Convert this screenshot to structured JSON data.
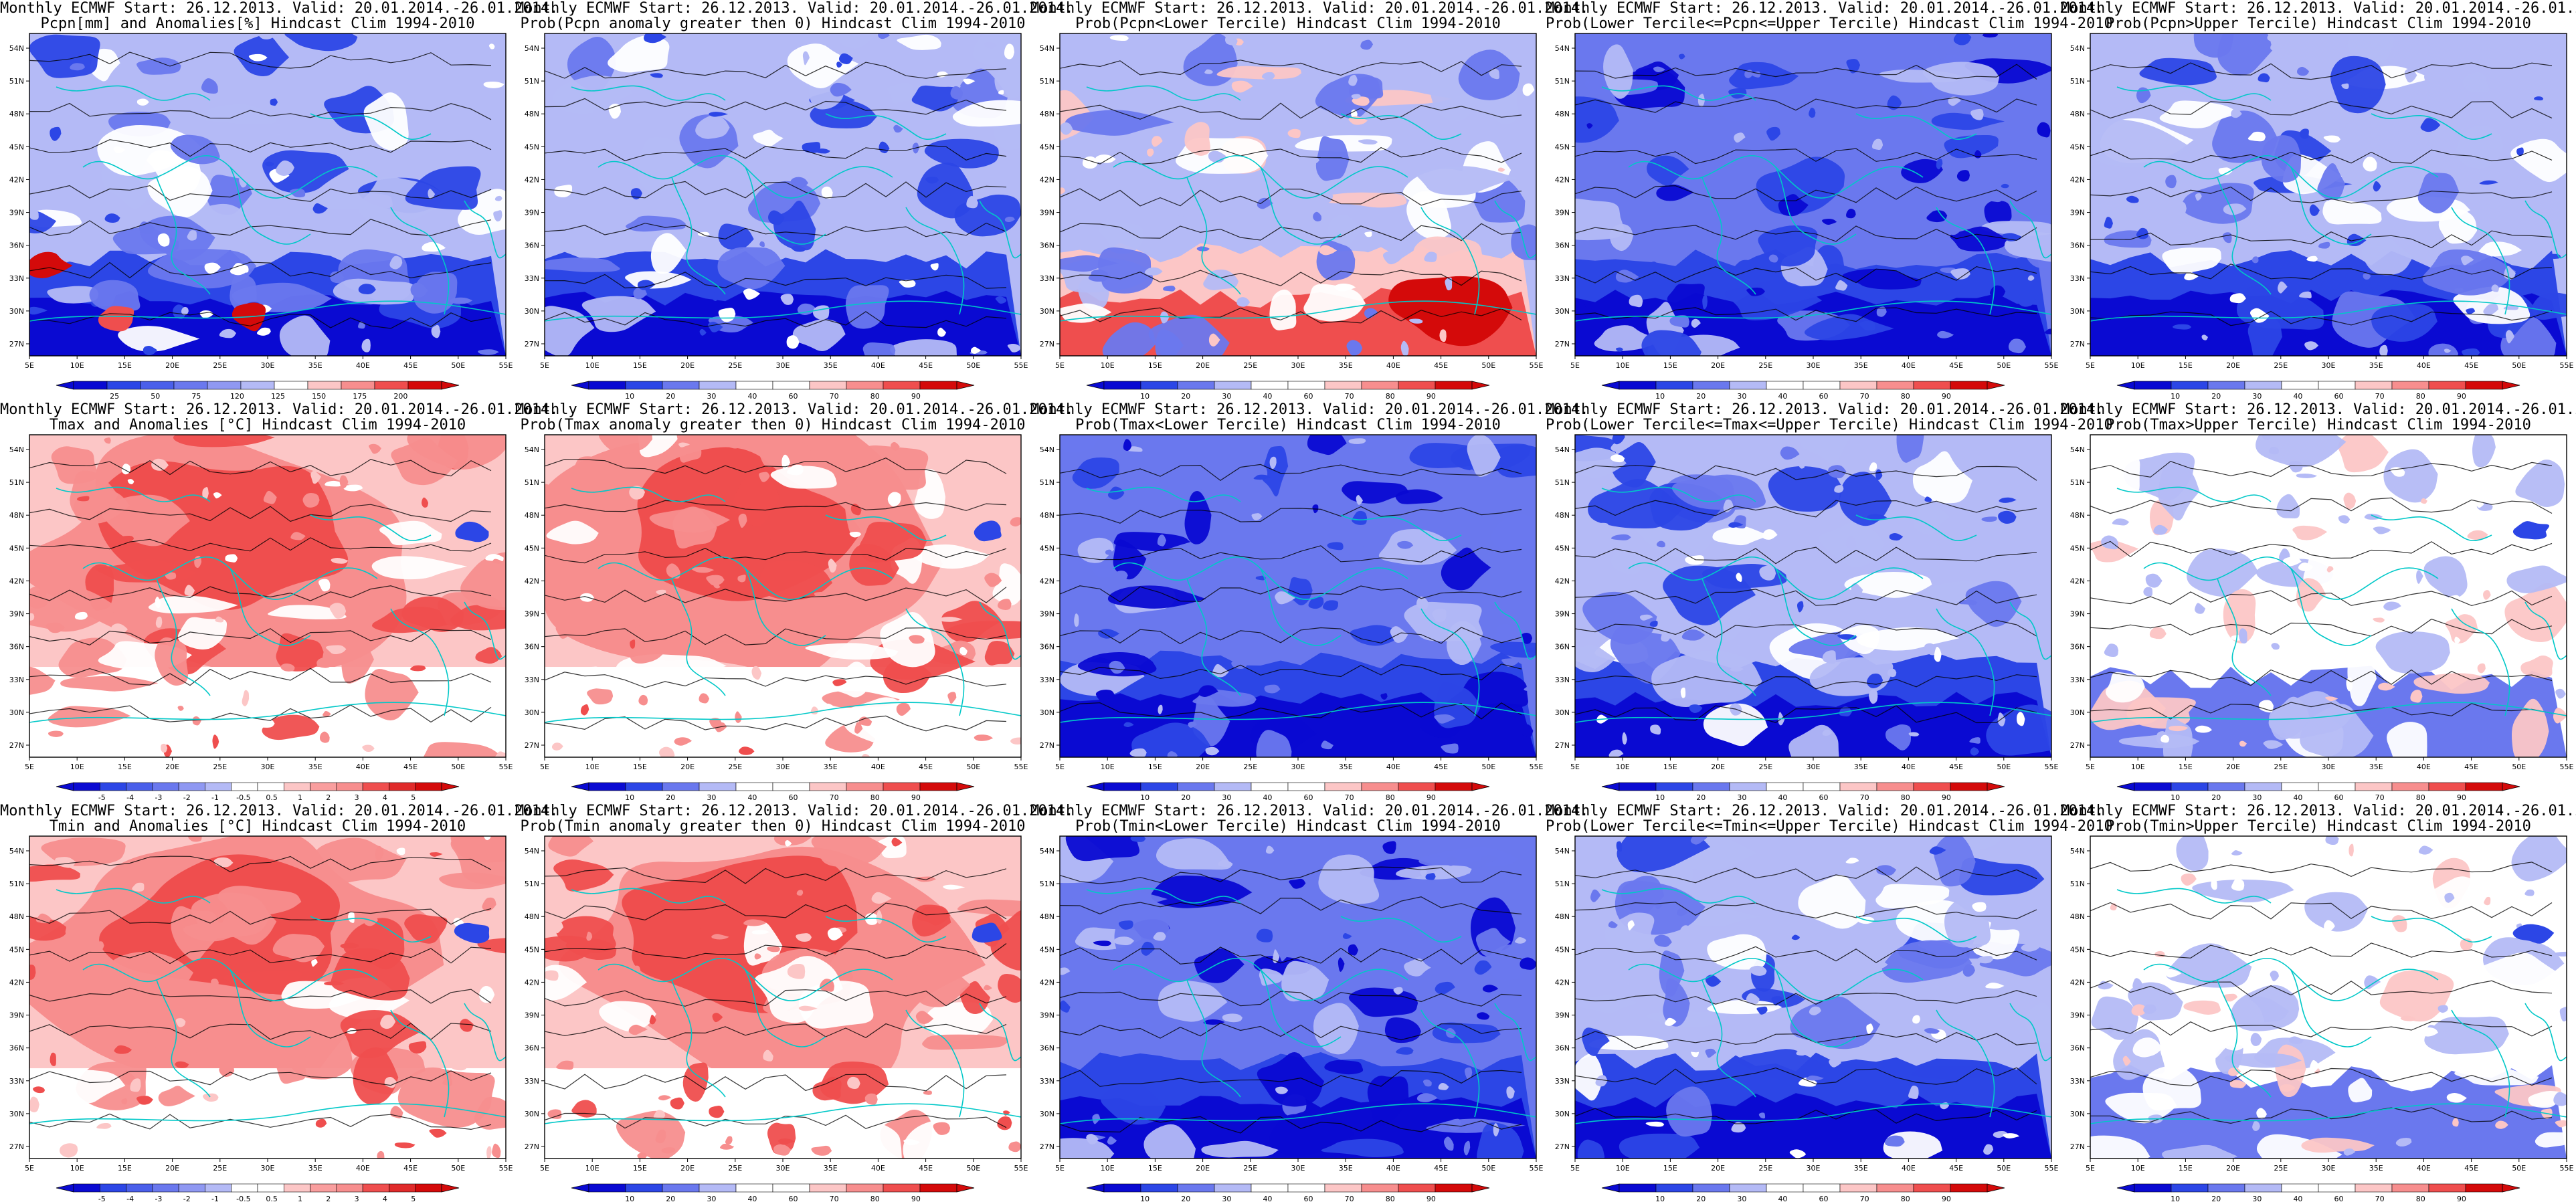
{
  "header": "Monthly ECMWF Start: 26.12.2013. Valid: 20.01.2014.-26.01.2014.",
  "map": {
    "lon_ticks": [
      "5E",
      "10E",
      "15E",
      "20E",
      "25E",
      "30E",
      "35E",
      "40E",
      "45E",
      "50E",
      "55E"
    ],
    "lat_ticks": [
      "54N",
      "51N",
      "48N",
      "45N",
      "42N",
      "39N",
      "36N",
      "33N",
      "30N",
      "27N"
    ]
  },
  "colors": {
    "blue4": "#0a0ad2",
    "blue3": "#2c46e6",
    "blue2": "#6a78ee",
    "blue1": "#b4baf6",
    "white": "#ffffff",
    "red1": "#fcc6c6",
    "red2": "#f78e8e",
    "red3": "#ef4e4e",
    "red4": "#d40a0a",
    "coast": "#00c8c8",
    "contour": "#000000"
  },
  "colorbars": {
    "pcpn": {
      "colors": [
        "#0a0ad2",
        "#2c46e6",
        "#4a5fea",
        "#6a78ee",
        "#8f98f2",
        "#b4baf6",
        "#ffffff",
        "#fcc6c6",
        "#f78e8e",
        "#ef4e4e",
        "#d40a0a"
      ],
      "labels": [
        "25",
        "50",
        "75",
        "120",
        "125",
        "150",
        "175",
        "200"
      ]
    },
    "prob": {
      "colors": [
        "#0a0ad2",
        "#2c46e6",
        "#6a78ee",
        "#b4baf6",
        "#ffffff",
        "#ffffff",
        "#fcc6c6",
        "#f78e8e",
        "#ef4e4e",
        "#d40a0a"
      ],
      "labels": [
        "10",
        "20",
        "30",
        "40",
        "60",
        "70",
        "80",
        "90"
      ]
    },
    "temp": {
      "colors": [
        "#0a0ad2",
        "#2c46e6",
        "#4a5fea",
        "#6a78ee",
        "#8f98f2",
        "#b4baf6",
        "#ffffff",
        "#ffffff",
        "#fcc6c6",
        "#f99e9e",
        "#f78e8e",
        "#ef4e4e",
        "#e02a2a",
        "#d40a0a"
      ],
      "labels": [
        "-5",
        "-4",
        "-3",
        "-2",
        "-1",
        "-0.5",
        "0.5",
        "1",
        "2",
        "3",
        "4",
        "5"
      ]
    }
  },
  "panels": [
    {
      "title": "Pcpn[mm] and Anomalies[%] Hindcast Clim 1994-2010",
      "bar": "pcpn",
      "palette": "pcpn",
      "seed": 11
    },
    {
      "title": "Prob(Pcpn anomaly greater then 0) Hindcast Clim 1994-2010",
      "bar": "prob",
      "palette": "blue",
      "seed": 12
    },
    {
      "title": "Prob(Pcpn<Lower Tercile) Hindcast Clim 1994-2010",
      "bar": "prob",
      "palette": "pcpnlow",
      "seed": 13
    },
    {
      "title": "Prob(Lower Tercile<=Pcpn<=Upper Tercile) Hindcast Clim 1994-2010",
      "bar": "prob",
      "palette": "bluedeep",
      "seed": 14
    },
    {
      "title": "Prob(Pcpn>Upper Tercile) Hindcast Clim 1994-2010",
      "bar": "prob",
      "palette": "blue",
      "seed": 15
    },
    {
      "title": "Tmax and Anomalies [°C] Hindcast Clim 1994-2010",
      "bar": "temp",
      "palette": "red",
      "seed": 21
    },
    {
      "title": "Prob(Tmax anomaly greater then 0) Hindcast Clim 1994-2010",
      "bar": "prob",
      "palette": "red",
      "seed": 22
    },
    {
      "title": "Prob(Tmax<Lower Tercile) Hindcast Clim 1994-2010",
      "bar": "prob",
      "palette": "bluedeep",
      "seed": 23
    },
    {
      "title": "Prob(Lower Tercile<=Tmax<=Upper Tercile) Hindcast Clim 1994-2010",
      "bar": "prob",
      "palette": "blue",
      "seed": 24
    },
    {
      "title": "Prob(Tmax>Upper Tercile) Hindcast Clim 1994-2010",
      "bar": "prob",
      "palette": "light",
      "seed": 25
    },
    {
      "title": "Tmin and Anomalies [°C] Hindcast Clim 1994-2010",
      "bar": "temp",
      "palette": "red",
      "seed": 31
    },
    {
      "title": "Prob(Tmin anomaly greater then 0) Hindcast Clim 1994-2010",
      "bar": "prob",
      "palette": "red",
      "seed": 32
    },
    {
      "title": "Prob(Tmin<Lower Tercile) Hindcast Clim 1994-2010",
      "bar": "prob",
      "palette": "bluedeep",
      "seed": 33
    },
    {
      "title": "Prob(Lower Tercile<=Tmin<=Upper Tercile) Hindcast Clim 1994-2010",
      "bar": "prob",
      "palette": "blue",
      "seed": 34
    },
    {
      "title": "Prob(Tmin>Upper Tercile) Hindcast Clim 1994-2010",
      "bar": "prob",
      "palette": "light",
      "seed": 35
    }
  ]
}
